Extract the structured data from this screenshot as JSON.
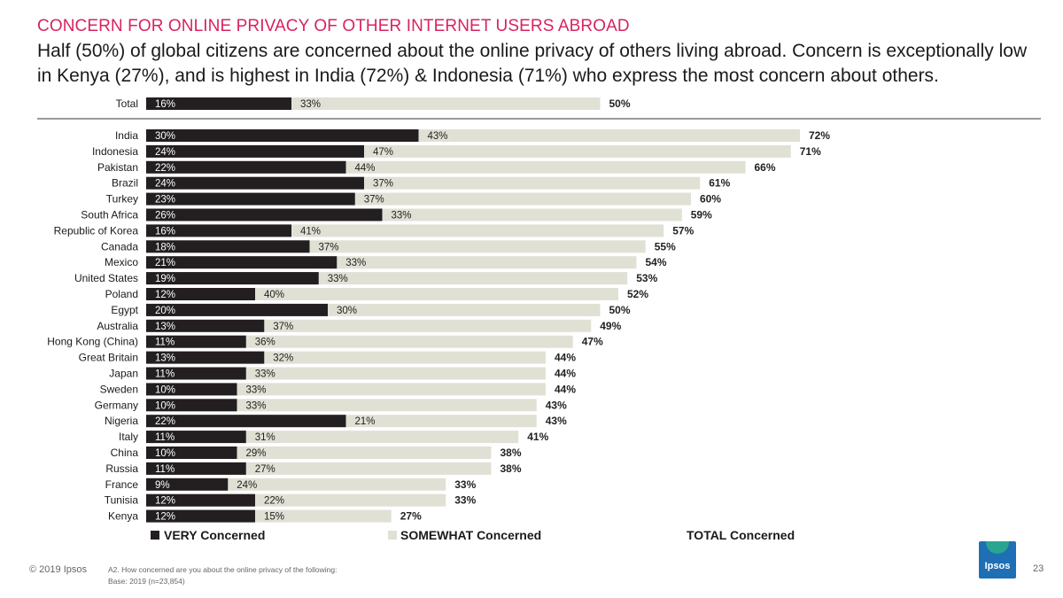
{
  "header": {
    "kicker": "CONCERN FOR ONLINE PRIVACY OF OTHER INTERNET USERS ABROAD",
    "headline": "Half (50%) of global citizens are concerned about the online privacy of others living abroad. Concern is exceptionally low in Kenya (27%), and is highest in India (72%) & Indonesia (71%) who express the most concern about others."
  },
  "colors": {
    "very": "#231f20",
    "somewhat": "#e1e0d5",
    "accent": "#d6245f",
    "logo": "#1f6fb5"
  },
  "chart_data": {
    "type": "bar",
    "orientation": "horizontal",
    "stacked": false,
    "xlim": [
      0,
      100
    ],
    "legend": [
      {
        "name": "VERY Concerned",
        "swatch": true
      },
      {
        "name": "SOMEWHAT Concerned",
        "swatch": true
      },
      {
        "name": "TOTAL Concerned",
        "swatch": false
      }
    ],
    "total": {
      "category": "Total",
      "very": 16,
      "somewhat": 33,
      "total": 50
    },
    "categories": [
      "India",
      "Indonesia",
      "Pakistan",
      "Brazil",
      "Turkey",
      "South Africa",
      "Republic of Korea",
      "Canada",
      "Mexico",
      "United States",
      "Poland",
      "Egypt",
      "Australia",
      "Hong Kong (China)",
      "Great Britain",
      "Japan",
      "Sweden",
      "Germany",
      "Nigeria",
      "Italy",
      "China",
      "Russia",
      "France",
      "Tunisia",
      "Kenya"
    ],
    "series": [
      {
        "name": "VERY Concerned",
        "values": [
          30,
          24,
          22,
          24,
          23,
          26,
          16,
          18,
          21,
          19,
          12,
          20,
          13,
          11,
          13,
          11,
          10,
          10,
          22,
          11,
          10,
          11,
          9,
          12,
          12
        ]
      },
      {
        "name": "SOMEWHAT Concerned",
        "values": [
          43,
          47,
          44,
          37,
          37,
          33,
          41,
          37,
          33,
          33,
          40,
          30,
          37,
          36,
          32,
          33,
          33,
          33,
          21,
          31,
          29,
          27,
          24,
          22,
          15
        ]
      },
      {
        "name": "TOTAL Concerned",
        "values": [
          72,
          71,
          66,
          61,
          60,
          59,
          57,
          55,
          54,
          53,
          52,
          50,
          49,
          47,
          44,
          44,
          44,
          43,
          43,
          41,
          38,
          38,
          33,
          33,
          27
        ]
      }
    ]
  },
  "footer": {
    "copyright": "© 2019 Ipsos",
    "question": "A2. How concerned are you about the online privacy of the following:",
    "base": "Base: 2019 (n=23,854)",
    "page": "23",
    "logo_text": "Ipsos"
  }
}
